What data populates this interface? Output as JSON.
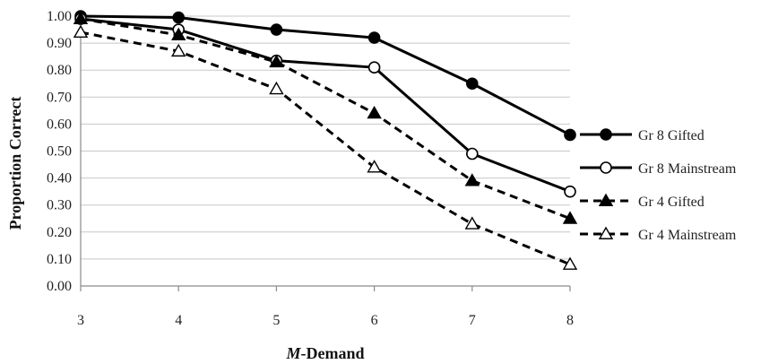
{
  "chart_data": {
    "type": "line",
    "title": "",
    "xlabel": {
      "prefix": "M",
      "suffix": "-Demand"
    },
    "ylabel": "Proportion Correct",
    "x": [
      3,
      4,
      5,
      6,
      7,
      8
    ],
    "x_tick_labels": [
      "3",
      "4",
      "5",
      "6",
      "7",
      "8"
    ],
    "ylim": [
      0,
      1
    ],
    "y_tick_labels": [
      "0.00",
      "0.10",
      "0.20",
      "0.30",
      "0.40",
      "0.50",
      "0.60",
      "0.70",
      "0.80",
      "0.90",
      "1.00"
    ],
    "grid": true,
    "legend_position": "right",
    "series": [
      {
        "name": "Gr 8 Gifted",
        "values": [
          1.0,
          0.995,
          0.95,
          0.92,
          0.75,
          0.56
        ],
        "line": "solid",
        "marker": "circle-filled",
        "color": "#000000"
      },
      {
        "name": "Gr 8 Mainstream",
        "values": [
          0.99,
          0.95,
          0.835,
          0.81,
          0.49,
          0.35
        ],
        "line": "solid",
        "marker": "circle-open",
        "color": "#000000"
      },
      {
        "name": "Gr 4 Gifted",
        "values": [
          0.99,
          0.93,
          0.83,
          0.64,
          0.39,
          0.25
        ],
        "line": "dashed",
        "marker": "triangle-filled",
        "color": "#000000"
      },
      {
        "name": "Gr 4 Mainstream",
        "values": [
          0.94,
          0.87,
          0.73,
          0.44,
          0.23,
          0.08
        ],
        "line": "dashed",
        "marker": "triangle-open",
        "color": "#000000"
      }
    ]
  }
}
